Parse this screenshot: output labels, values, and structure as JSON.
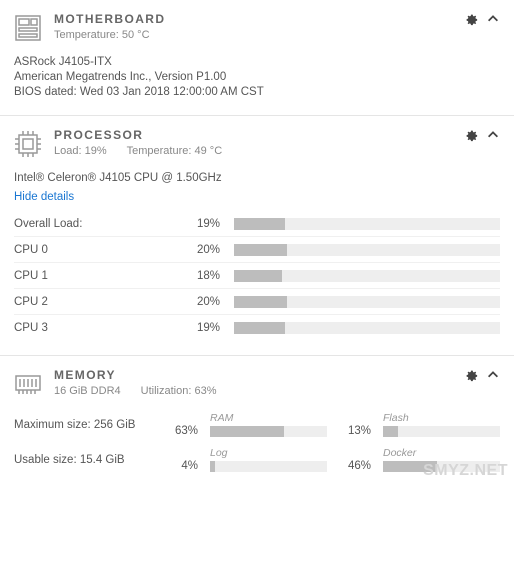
{
  "motherboard": {
    "title": "MOTHERBOARD",
    "temp_label": "Temperature:",
    "temp_value": "50 °C",
    "model": "ASRock J4105-ITX",
    "bios_vendor": "American Megatrends Inc., Version P1.00",
    "bios_date": "BIOS dated: Wed 03 Jan 2018 12:00:00 AM CST"
  },
  "processor": {
    "title": "PROCESSOR",
    "load_label": "Load:",
    "load_value": "19%",
    "temp_label": "Temperature:",
    "temp_value": "49 °C",
    "model": "Intel® Celeron® J4105 CPU @ 1.50GHz",
    "hide_details": "Hide details",
    "rows": [
      {
        "label": "Overall Load:",
        "pct": 19
      },
      {
        "label": "CPU 0",
        "pct": 20
      },
      {
        "label": "CPU 1",
        "pct": 18
      },
      {
        "label": "CPU 2",
        "pct": 20
      },
      {
        "label": "CPU 3",
        "pct": 19
      }
    ]
  },
  "memory": {
    "title": "MEMORY",
    "capacity": "16 GiB DDR4",
    "util_label": "Utilization:",
    "util_value": "63%",
    "max_label": "Maximum size: 256 GiB",
    "usable_label": "Usable size: 15.4 GiB",
    "bars": {
      "ram": {
        "label": "RAM",
        "pct": 63
      },
      "flash": {
        "label": "Flash",
        "pct": 13
      },
      "log": {
        "label": "Log",
        "pct": 4
      },
      "docker": {
        "label": "Docker",
        "pct": 46
      }
    }
  },
  "colors": {
    "bar_bg": "#eeeeee",
    "bar_fill": "#bdbdbd"
  },
  "watermark": "SMYZ.NET"
}
